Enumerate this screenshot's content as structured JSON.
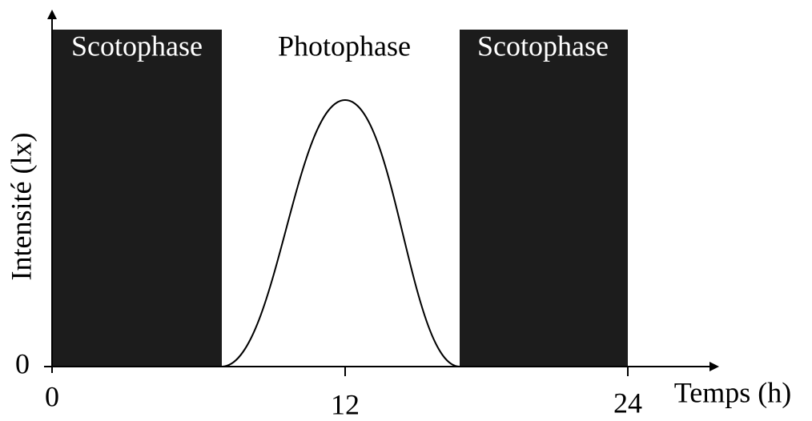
{
  "diagram": {
    "y_axis_label": "Intensité (lx)",
    "y_tick": "0",
    "x_axis_label": "Temps (h)",
    "x_ticks": [
      "0",
      "12",
      "24"
    ],
    "phases": [
      "Scotophase",
      "Photophase",
      "Scotophase"
    ]
  }
}
